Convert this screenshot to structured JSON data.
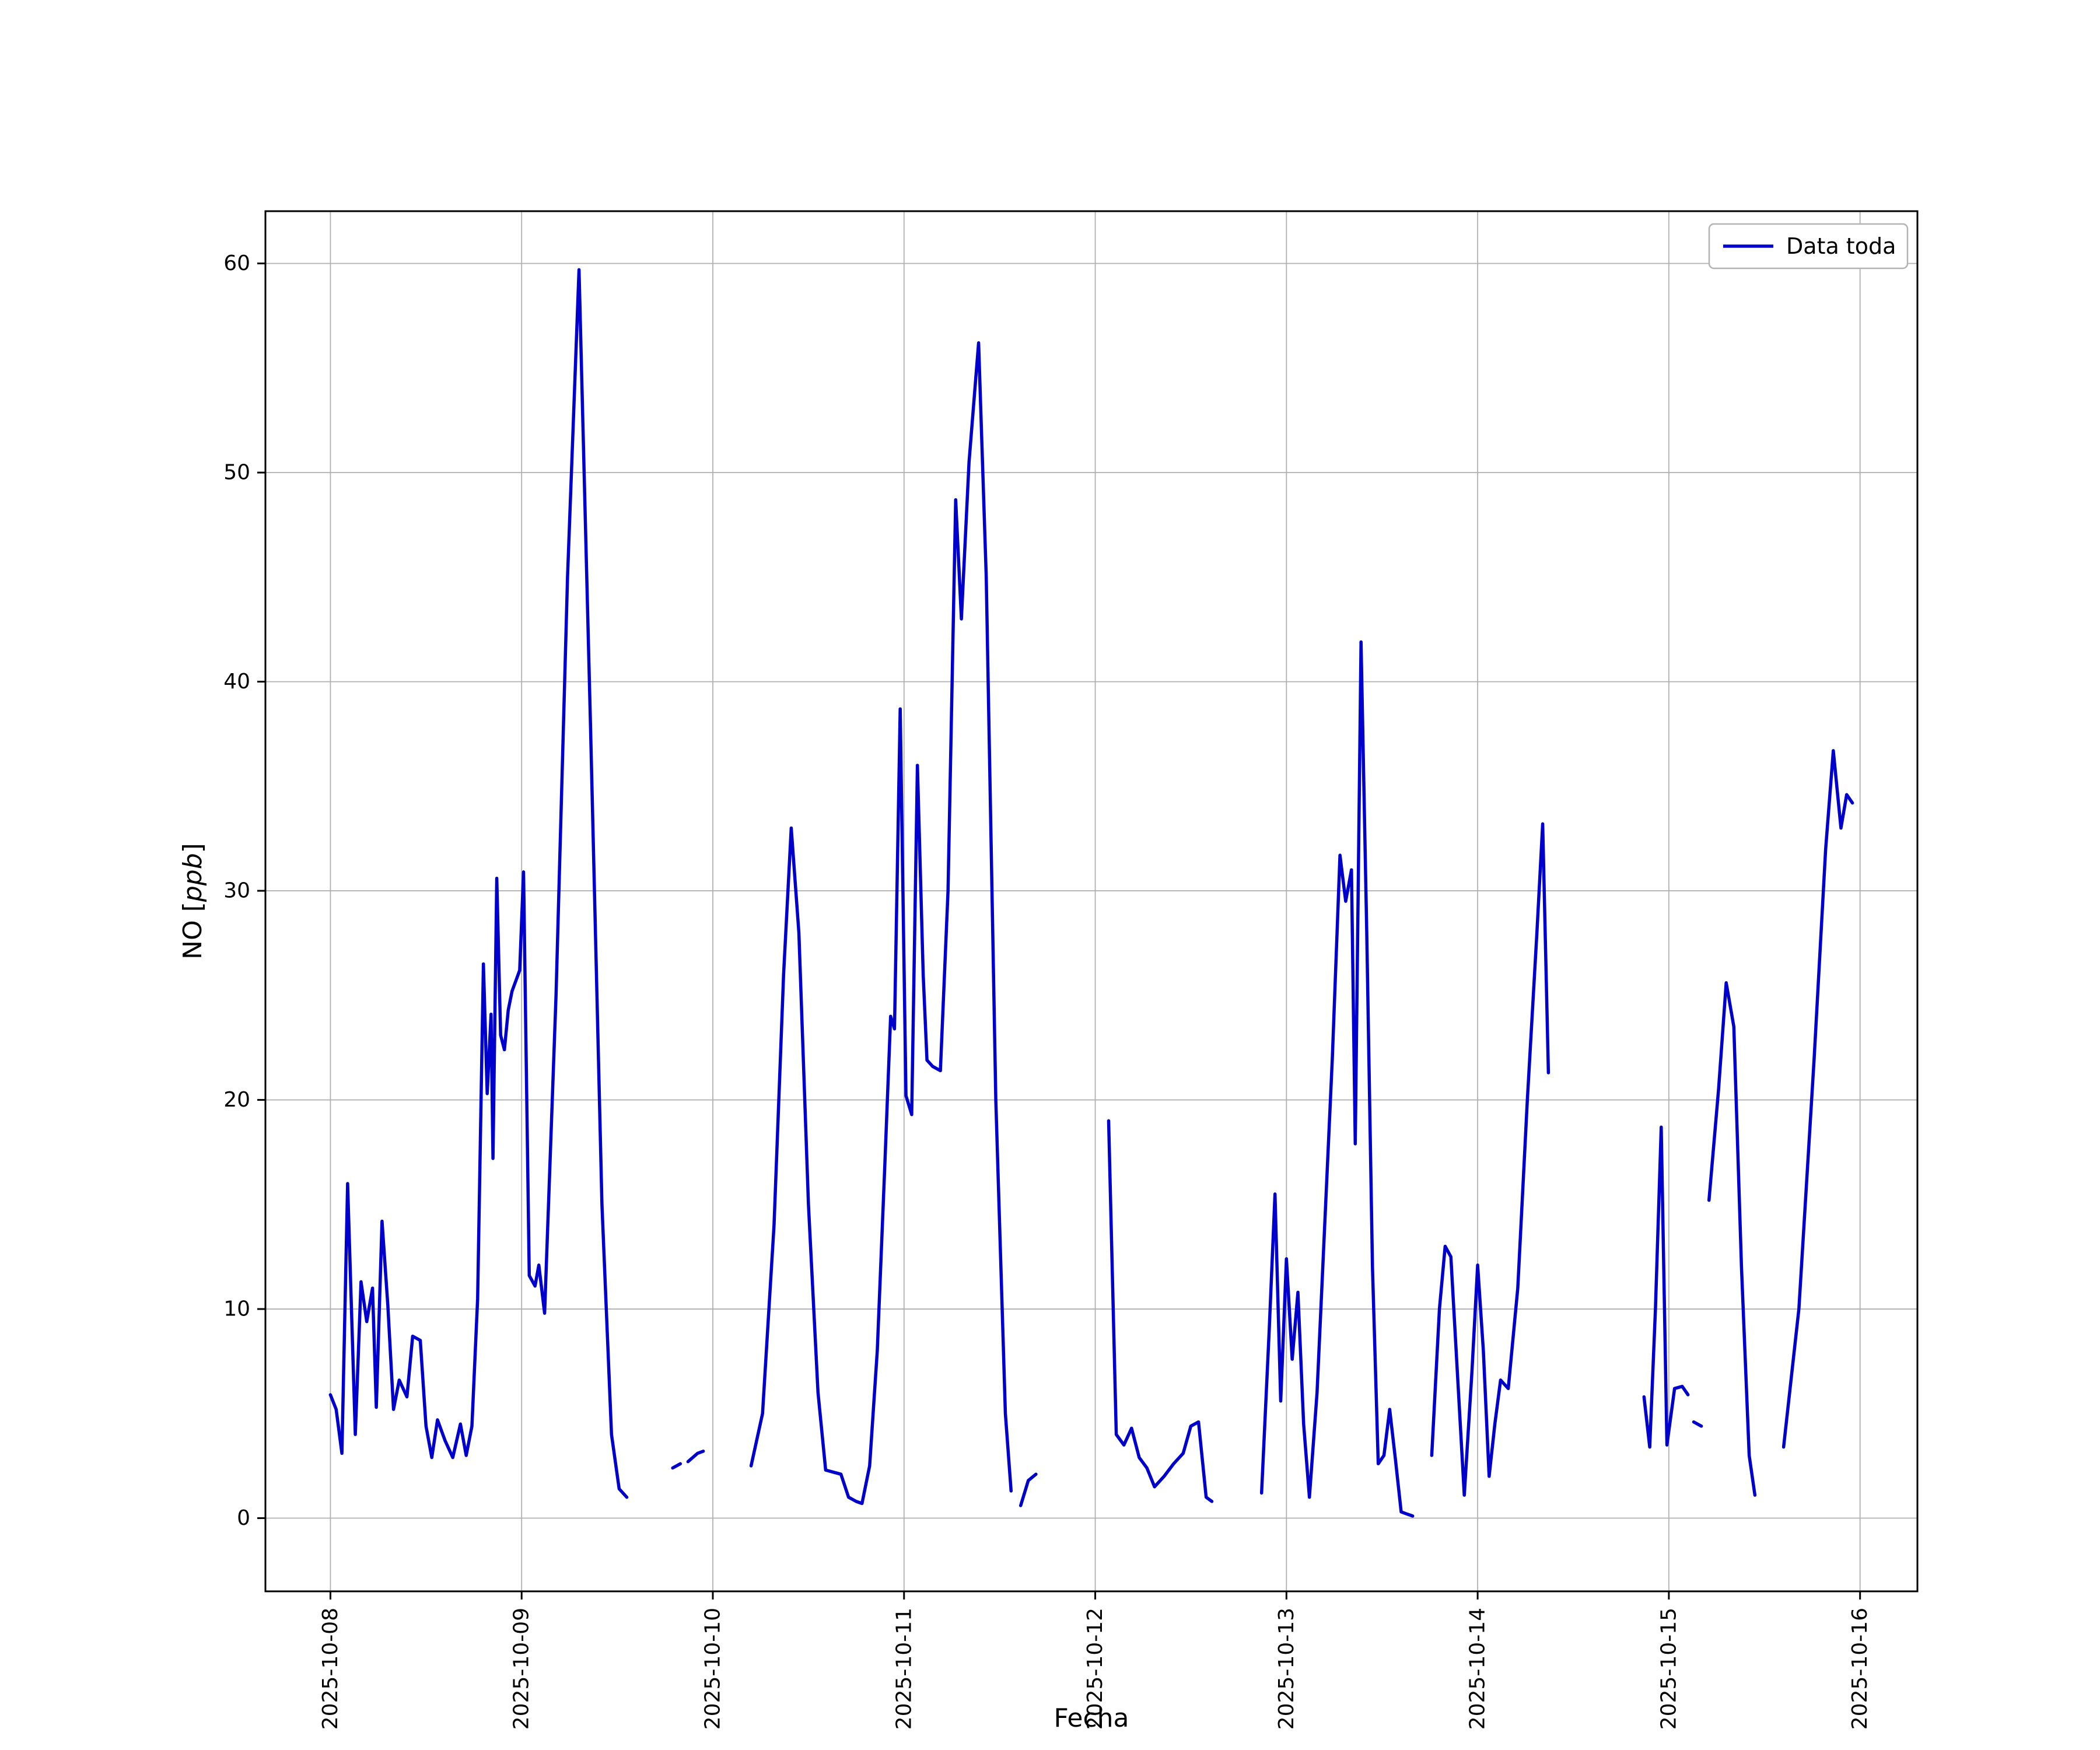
{
  "figure": {
    "background": "#ffffff",
    "axes_background": "#ffffff",
    "spine_color": "#000000",
    "grid_color": "#b0b0b0",
    "tick_color": "#000000"
  },
  "legend": {
    "label": "Data toda",
    "border_color": "#b3b3b3",
    "background": "#ffffff"
  },
  "chart_data": {
    "type": "line",
    "title": "",
    "xlabel": "Fecha",
    "ylabel": "NO [ppb]",
    "ylabel_parts": {
      "prefix": "NO [",
      "italic": "ppb",
      "suffix": "]"
    },
    "line_color": "#0000cc",
    "line_width": 5.5,
    "grid": true,
    "legend_position": "upper right",
    "x_tick_labels": [
      "2025-10-08",
      "2025-10-09",
      "2025-10-10",
      "2025-10-11",
      "2025-10-12",
      "2025-10-13",
      "2025-10-14",
      "2025-10-15",
      "2025-10-16"
    ],
    "x_tick_positions": [
      0,
      1,
      2,
      3,
      4,
      5,
      6,
      7,
      8
    ],
    "y_ticks": [
      0,
      10,
      20,
      30,
      40,
      50,
      60
    ],
    "xlim": [
      -0.34,
      8.3
    ],
    "ylim": [
      -3.5,
      62.5
    ],
    "x_unit": "days since 2025-10-08",
    "segments": [
      [
        [
          0.0,
          5.9
        ],
        [
          0.03,
          5.2
        ],
        [
          0.06,
          3.1
        ],
        [
          0.09,
          16.0
        ],
        [
          0.13,
          4.0
        ],
        [
          0.16,
          11.3
        ],
        [
          0.19,
          9.4
        ],
        [
          0.22,
          11.0
        ],
        [
          0.24,
          5.3
        ],
        [
          0.27,
          14.2
        ],
        [
          0.3,
          10.2
        ],
        [
          0.33,
          5.2
        ],
        [
          0.36,
          6.6
        ],
        [
          0.4,
          5.8
        ],
        [
          0.43,
          8.7
        ],
        [
          0.47,
          8.5
        ],
        [
          0.5,
          4.4
        ],
        [
          0.53,
          2.9
        ],
        [
          0.56,
          4.7
        ],
        [
          0.6,
          3.7
        ],
        [
          0.64,
          2.9
        ],
        [
          0.68,
          4.5
        ],
        [
          0.71,
          3.0
        ],
        [
          0.74,
          4.4
        ],
        [
          0.77,
          10.5
        ],
        [
          0.8,
          26.5
        ],
        [
          0.82,
          20.3
        ],
        [
          0.84,
          24.1
        ],
        [
          0.85,
          17.2
        ],
        [
          0.87,
          30.6
        ],
        [
          0.89,
          23.1
        ],
        [
          0.91,
          22.4
        ],
        [
          0.93,
          24.3
        ],
        [
          0.95,
          25.2
        ],
        [
          0.97,
          25.7
        ],
        [
          0.99,
          26.2
        ],
        [
          1.01,
          30.9
        ],
        [
          1.04,
          11.6
        ],
        [
          1.07,
          11.1
        ],
        [
          1.09,
          12.1
        ],
        [
          1.12,
          9.8
        ],
        [
          1.18,
          25.0
        ],
        [
          1.24,
          45.0
        ],
        [
          1.3,
          59.7
        ],
        [
          1.36,
          38.0
        ],
        [
          1.42,
          15.0
        ],
        [
          1.47,
          4.0
        ],
        [
          1.51,
          1.4
        ],
        [
          1.55,
          1.0
        ]
      ],
      [
        [
          1.79,
          2.4
        ],
        [
          1.83,
          2.6
        ]
      ],
      [
        [
          1.87,
          2.7
        ],
        [
          1.92,
          3.1
        ],
        [
          1.95,
          3.2
        ]
      ],
      [
        [
          2.2,
          2.5
        ],
        [
          2.26,
          5.0
        ],
        [
          2.32,
          14.0
        ],
        [
          2.37,
          26.0
        ],
        [
          2.41,
          33.0
        ],
        [
          2.45,
          28.0
        ],
        [
          2.5,
          15.0
        ],
        [
          2.55,
          6.0
        ],
        [
          2.59,
          2.3
        ],
        [
          2.63,
          2.2
        ],
        [
          2.67,
          2.1
        ],
        [
          2.71,
          1.0
        ],
        [
          2.75,
          0.8
        ],
        [
          2.78,
          0.7
        ],
        [
          2.82,
          2.5
        ],
        [
          2.86,
          8.0
        ],
        [
          2.9,
          17.0
        ],
        [
          2.93,
          24.0
        ],
        [
          2.95,
          23.4
        ],
        [
          2.98,
          38.7
        ],
        [
          3.01,
          20.2
        ],
        [
          3.04,
          19.3
        ],
        [
          3.07,
          36.0
        ],
        [
          3.1,
          26.0
        ],
        [
          3.12,
          21.9
        ],
        [
          3.15,
          21.6
        ],
        [
          3.19,
          21.4
        ],
        [
          3.23,
          30.0
        ],
        [
          3.27,
          48.7
        ],
        [
          3.3,
          43.0
        ],
        [
          3.34,
          50.5
        ],
        [
          3.39,
          56.2
        ],
        [
          3.43,
          45.0
        ],
        [
          3.48,
          20.0
        ],
        [
          3.53,
          5.0
        ],
        [
          3.56,
          1.3
        ]
      ],
      [
        [
          3.61,
          0.6
        ],
        [
          3.65,
          1.8
        ],
        [
          3.69,
          2.1
        ]
      ],
      [
        [
          4.07,
          19.0
        ],
        [
          4.11,
          4.0
        ],
        [
          4.15,
          3.5
        ],
        [
          4.19,
          4.3
        ],
        [
          4.23,
          2.9
        ],
        [
          4.27,
          2.4
        ],
        [
          4.31,
          1.5
        ],
        [
          4.36,
          2.0
        ],
        [
          4.41,
          2.6
        ],
        [
          4.46,
          3.1
        ],
        [
          4.5,
          4.4
        ],
        [
          4.54,
          4.6
        ],
        [
          4.58,
          1.0
        ],
        [
          4.61,
          0.8
        ]
      ],
      [
        [
          4.87,
          1.2
        ],
        [
          4.91,
          9.0
        ],
        [
          4.94,
          15.5
        ],
        [
          4.97,
          5.6
        ],
        [
          5.0,
          12.4
        ],
        [
          5.03,
          7.6
        ],
        [
          5.06,
          10.8
        ],
        [
          5.09,
          4.5
        ],
        [
          5.12,
          1.0
        ],
        [
          5.16,
          6.0
        ],
        [
          5.2,
          14.0
        ],
        [
          5.24,
          22.0
        ],
        [
          5.28,
          31.7
        ],
        [
          5.31,
          29.5
        ],
        [
          5.34,
          31.0
        ],
        [
          5.36,
          17.9
        ],
        [
          5.39,
          41.9
        ],
        [
          5.42,
          28.0
        ],
        [
          5.45,
          12.0
        ],
        [
          5.48,
          2.6
        ],
        [
          5.51,
          3.0
        ],
        [
          5.54,
          5.2
        ],
        [
          5.57,
          2.8
        ],
        [
          5.6,
          0.3
        ],
        [
          5.63,
          0.2
        ],
        [
          5.66,
          0.1
        ]
      ],
      [
        [
          5.76,
          3.0
        ],
        [
          5.8,
          10.0
        ],
        [
          5.83,
          13.0
        ],
        [
          5.86,
          12.5
        ],
        [
          5.9,
          6.0
        ],
        [
          5.93,
          1.1
        ],
        [
          5.97,
          7.0
        ],
        [
          6.0,
          12.1
        ],
        [
          6.03,
          8.0
        ],
        [
          6.06,
          2.0
        ],
        [
          6.09,
          4.5
        ],
        [
          6.12,
          6.6
        ],
        [
          6.16,
          6.2
        ],
        [
          6.21,
          11.0
        ],
        [
          6.26,
          20.0
        ],
        [
          6.31,
          28.0
        ],
        [
          6.34,
          33.2
        ],
        [
          6.37,
          21.3
        ]
      ],
      [
        [
          6.87,
          5.8
        ],
        [
          6.9,
          3.4
        ],
        [
          6.93,
          10.0
        ],
        [
          6.96,
          18.7
        ],
        [
          6.99,
          3.5
        ],
        [
          7.03,
          6.2
        ],
        [
          7.07,
          6.3
        ],
        [
          7.1,
          5.9
        ]
      ],
      [
        [
          7.13,
          4.6
        ],
        [
          7.17,
          4.4
        ]
      ],
      [
        [
          7.21,
          15.2
        ],
        [
          7.26,
          20.5
        ],
        [
          7.3,
          25.6
        ],
        [
          7.34,
          23.5
        ],
        [
          7.38,
          12.0
        ],
        [
          7.42,
          3.0
        ],
        [
          7.45,
          1.1
        ]
      ],
      [
        [
          7.6,
          3.4
        ],
        [
          7.68,
          10.0
        ],
        [
          7.76,
          22.0
        ],
        [
          7.82,
          32.0
        ],
        [
          7.86,
          36.7
        ],
        [
          7.9,
          33.0
        ],
        [
          7.93,
          34.6
        ],
        [
          7.96,
          34.2
        ]
      ]
    ]
  }
}
